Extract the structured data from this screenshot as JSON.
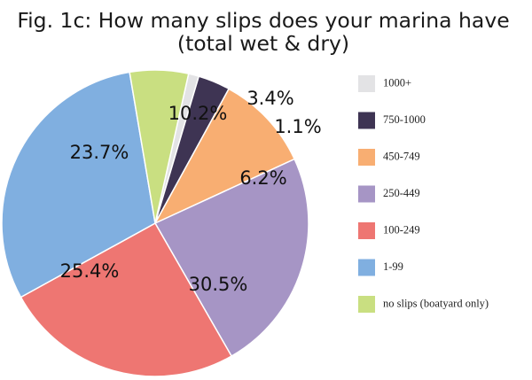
{
  "title_lines": [
    "Fig. 1c: How many slips does your marina have",
    "(total wet & dry)"
  ],
  "chart_data": {
    "type": "pie",
    "title": "Fig. 1c: How many slips does your marina have (total wet & dry)",
    "legend_position": "right",
    "slices": [
      {
        "label": "1000+",
        "value": 1.1,
        "value_label": "1.1%",
        "color": "#e3e3e5"
      },
      {
        "label": "750-1000",
        "value": 3.4,
        "value_label": "3.4%",
        "color": "#3e3453"
      },
      {
        "label": "450-749",
        "value": 10.2,
        "value_label": "10.2%",
        "color": "#f8ae72"
      },
      {
        "label": "250-449",
        "value": 23.7,
        "value_label": "23.7%",
        "color": "#a695c5"
      },
      {
        "label": "100-249",
        "value": 25.4,
        "value_label": "25.4%",
        "color": "#ee7672"
      },
      {
        "label": "1-99",
        "value": 30.5,
        "value_label": "30.5%",
        "color": "#80afe0"
      },
      {
        "label": "no slips (boatyard only)",
        "value": 6.2,
        "value_label": "6.2%",
        "color": "#c9df81"
      }
    ]
  }
}
